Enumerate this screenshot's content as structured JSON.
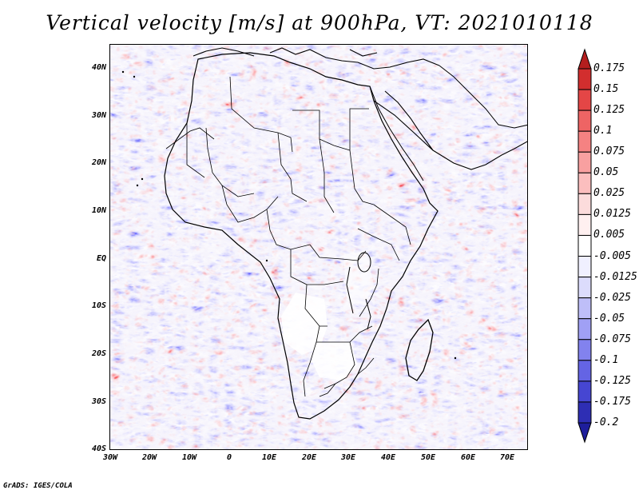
{
  "title": "Vertical velocity [m/s] at 900hPa, VT: 2021010118",
  "credit": "GrADS: IGES/COLA",
  "map": {
    "lat_labels": [
      "40N",
      "30N",
      "20N",
      "10N",
      "EQ",
      "10S",
      "20S",
      "30S",
      "40S"
    ],
    "lon_labels": [
      "30W",
      "20W",
      "10W",
      "0",
      "10E",
      "20E",
      "30E",
      "40E",
      "50E",
      "60E",
      "70E"
    ],
    "lat_range": [
      -40,
      45
    ],
    "lon_range": [
      -30,
      75
    ],
    "colors": {
      "coastline": "#000000",
      "land_tint": "#f3f0fb",
      "quiet_region": "#ffffff"
    }
  },
  "colorbar": {
    "labels": [
      "0.175",
      "0.15",
      "0.125",
      "0.1",
      "0.075",
      "0.05",
      "0.025",
      "0.0125",
      "0.005",
      "-0.005",
      "-0.0125",
      "-0.025",
      "-0.05",
      "-0.075",
      "-0.1",
      "-0.125",
      "-0.175",
      "-0.2"
    ],
    "colors": [
      "#b41e1e",
      "#d22e2e",
      "#e44646",
      "#ee6464",
      "#f58282",
      "#f8a0a0",
      "#fbbebe",
      "#fcdcdc",
      "#fff0f0",
      "#ffffff",
      "#f0f0ff",
      "#dcdcfc",
      "#bebef8",
      "#a0a0f5",
      "#8282ee",
      "#6464e4",
      "#4646d2",
      "#2e2eb4",
      "#1e1e9c"
    ]
  }
}
